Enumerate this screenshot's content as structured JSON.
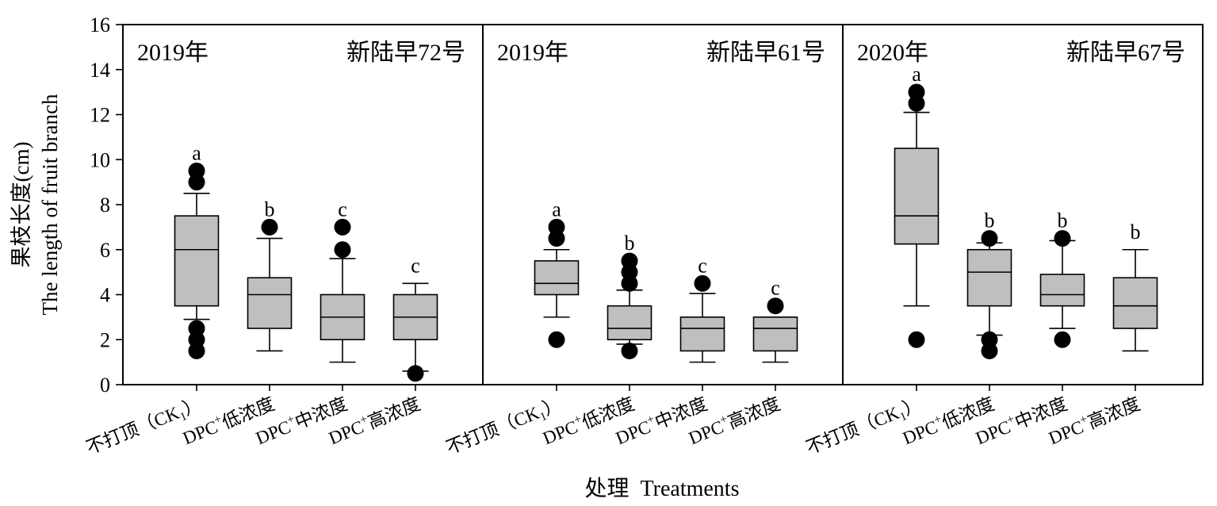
{
  "chart_data": {
    "type": "box",
    "ylabel_cn": "果枝长度(cm)",
    "ylabel_en": "The length of fruit branch",
    "xlabel": "处理  Treatments",
    "ylim": [
      0,
      16
    ],
    "yticks": [
      "0",
      "2",
      "4",
      "6",
      "8",
      "10",
      "12",
      "14",
      "16"
    ],
    "categories": [
      {
        "main": "不打顶（CK",
        "sub": "1",
        "tail": "）"
      },
      {
        "main": "DPC",
        "sup": "+",
        "tail": "低浓度"
      },
      {
        "main": "DPC",
        "sup": "+",
        "tail": "中浓度"
      },
      {
        "main": "DPC",
        "sup": "+",
        "tail": "高浓度"
      }
    ],
    "panels": [
      {
        "year": "2019年",
        "variety": "新陆早72号",
        "boxes": [
          {
            "whisker_low": 2.9,
            "q1": 3.5,
            "median": 6.0,
            "q3": 7.5,
            "whisker_high": 8.5,
            "outliers": [
              1.5,
              2.0,
              2.5,
              9.0,
              9.5
            ],
            "letter": "a"
          },
          {
            "whisker_low": 1.5,
            "q1": 2.5,
            "median": 4.0,
            "q3": 4.75,
            "whisker_high": 6.5,
            "outliers": [
              7.0
            ],
            "letter": "b"
          },
          {
            "whisker_low": 1.0,
            "q1": 2.0,
            "median": 3.0,
            "q3": 4.0,
            "whisker_high": 5.6,
            "outliers": [
              6.0,
              7.0
            ],
            "letter": "c"
          },
          {
            "whisker_low": 0.6,
            "q1": 2.0,
            "median": 3.0,
            "q3": 4.0,
            "whisker_high": 4.5,
            "outliers": [
              0.5
            ],
            "letter": "c"
          }
        ]
      },
      {
        "year": "2019年",
        "variety": "新陆早61号",
        "boxes": [
          {
            "whisker_low": 3.0,
            "q1": 4.0,
            "median": 4.5,
            "q3": 5.5,
            "whisker_high": 6.0,
            "outliers": [
              2.0,
              6.5,
              7.0
            ],
            "letter": "a"
          },
          {
            "whisker_low": 1.8,
            "q1": 2.0,
            "median": 2.5,
            "q3": 3.5,
            "whisker_high": 4.2,
            "outliers": [
              1.5,
              4.5,
              5.0,
              5.5
            ],
            "letter": "b"
          },
          {
            "whisker_low": 1.0,
            "q1": 1.5,
            "median": 2.5,
            "q3": 3.0,
            "whisker_high": 4.05,
            "outliers": [
              4.5
            ],
            "letter": "c"
          },
          {
            "whisker_low": 1.0,
            "q1": 1.5,
            "median": 2.5,
            "q3": 3.0,
            "whisker_high": 3.0,
            "outliers": [
              3.5
            ],
            "letter": "c"
          }
        ]
      },
      {
        "year": "2020年",
        "variety": "新陆早67号",
        "boxes": [
          {
            "whisker_low": 3.5,
            "q1": 6.25,
            "median": 7.5,
            "q3": 10.5,
            "whisker_high": 12.1,
            "outliers": [
              2.0,
              12.5,
              13.0
            ],
            "letter": "a"
          },
          {
            "whisker_low": 2.2,
            "q1": 3.5,
            "median": 5.0,
            "q3": 6.0,
            "whisker_high": 6.3,
            "outliers": [
              1.5,
              2.0,
              6.5
            ],
            "letter": "b"
          },
          {
            "whisker_low": 2.5,
            "q1": 3.5,
            "median": 4.0,
            "q3": 4.9,
            "whisker_high": 6.4,
            "outliers": [
              2.0,
              6.5
            ],
            "letter": "b"
          },
          {
            "whisker_low": 1.5,
            "q1": 2.5,
            "median": 3.5,
            "q3": 4.75,
            "whisker_high": 6.0,
            "outliers": [],
            "letter": "b"
          }
        ]
      }
    ]
  }
}
